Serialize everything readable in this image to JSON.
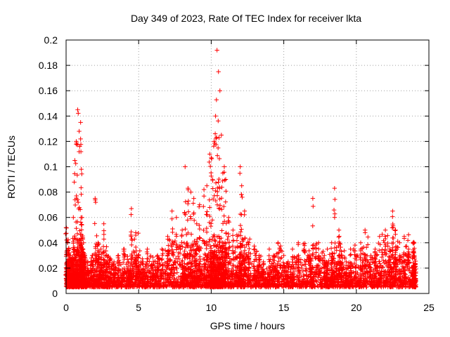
{
  "chart_data": {
    "type": "scatter",
    "title": "Day 349 of 2023, Rate Of TEC Index for receiver lkta",
    "xlabel": "GPS time / hours",
    "ylabel": "ROTI / TECUs",
    "xlim": [
      0,
      25
    ],
    "ylim": [
      0,
      0.2
    ],
    "xticks": [
      "0",
      "5",
      "10",
      "15",
      "20",
      "25"
    ],
    "yticks": [
      "0",
      "0.02",
      "0.04",
      "0.06",
      "0.08",
      "0.1",
      "0.12",
      "0.14",
      "0.16",
      "0.18",
      "0.2"
    ],
    "grid": true,
    "marker": "+",
    "color": "#ff0000",
    "series": [
      {
        "x": [
          0.0,
          0.1,
          0.2,
          0.3,
          0.4,
          0.5,
          0.6,
          0.7,
          0.8,
          0.9,
          1.0,
          1.05,
          1.1,
          1.2,
          1.3,
          1.5,
          1.8,
          2.0,
          2.2,
          2.4,
          2.6,
          2.8,
          3.0,
          3.3,
          3.6,
          4.0,
          4.3,
          4.5,
          4.8,
          5.0,
          5.3,
          5.6,
          6.0,
          6.3,
          6.6,
          7.0,
          7.3,
          7.6,
          8.0,
          8.2,
          8.4,
          8.6,
          8.8,
          9.0,
          9.2,
          9.5,
          9.7,
          9.9,
          10.0,
          10.1,
          10.2,
          10.3,
          10.4,
          10.5,
          10.6,
          10.7,
          10.8,
          10.9,
          11.0,
          11.2,
          11.5,
          11.8,
          12.0,
          12.1,
          12.3,
          12.6,
          13.0,
          13.3,
          13.6,
          14.0,
          14.3,
          14.6,
          15.0,
          15.3,
          15.6,
          16.0,
          16.4,
          16.8,
          17.0,
          17.4,
          17.8,
          18.0,
          18.3,
          18.5,
          18.8,
          19.0,
          19.3,
          19.6,
          20.0,
          20.3,
          20.6,
          21.0,
          21.3,
          21.6,
          22.0,
          22.3,
          22.5,
          22.7,
          23.0,
          23.3,
          23.6,
          23.9,
          24.0
        ],
        "y": [
          0.052,
          0.04,
          0.03,
          0.025,
          0.028,
          0.06,
          0.105,
          0.12,
          0.145,
          0.128,
          0.135,
          0.098,
          0.06,
          0.04,
          0.03,
          0.025,
          0.03,
          0.075,
          0.04,
          0.035,
          0.055,
          0.03,
          0.028,
          0.025,
          0.03,
          0.035,
          0.025,
          0.067,
          0.048,
          0.03,
          0.025,
          0.035,
          0.025,
          0.03,
          0.035,
          0.045,
          0.065,
          0.06,
          0.05,
          0.1,
          0.083,
          0.08,
          0.075,
          0.055,
          0.07,
          0.082,
          0.085,
          0.11,
          0.107,
          0.09,
          0.12,
          0.14,
          0.192,
          0.175,
          0.16,
          0.125,
          0.095,
          0.1,
          0.09,
          0.06,
          0.05,
          0.045,
          0.1,
          0.085,
          0.065,
          0.04,
          0.035,
          0.03,
          0.025,
          0.035,
          0.03,
          0.04,
          0.03,
          0.025,
          0.035,
          0.04,
          0.035,
          0.03,
          0.075,
          0.04,
          0.03,
          0.035,
          0.04,
          0.083,
          0.05,
          0.03,
          0.025,
          0.035,
          0.03,
          0.04,
          0.05,
          0.03,
          0.035,
          0.045,
          0.05,
          0.035,
          0.065,
          0.05,
          0.03,
          0.045,
          0.035,
          0.04,
          0.03
        ]
      }
    ]
  }
}
